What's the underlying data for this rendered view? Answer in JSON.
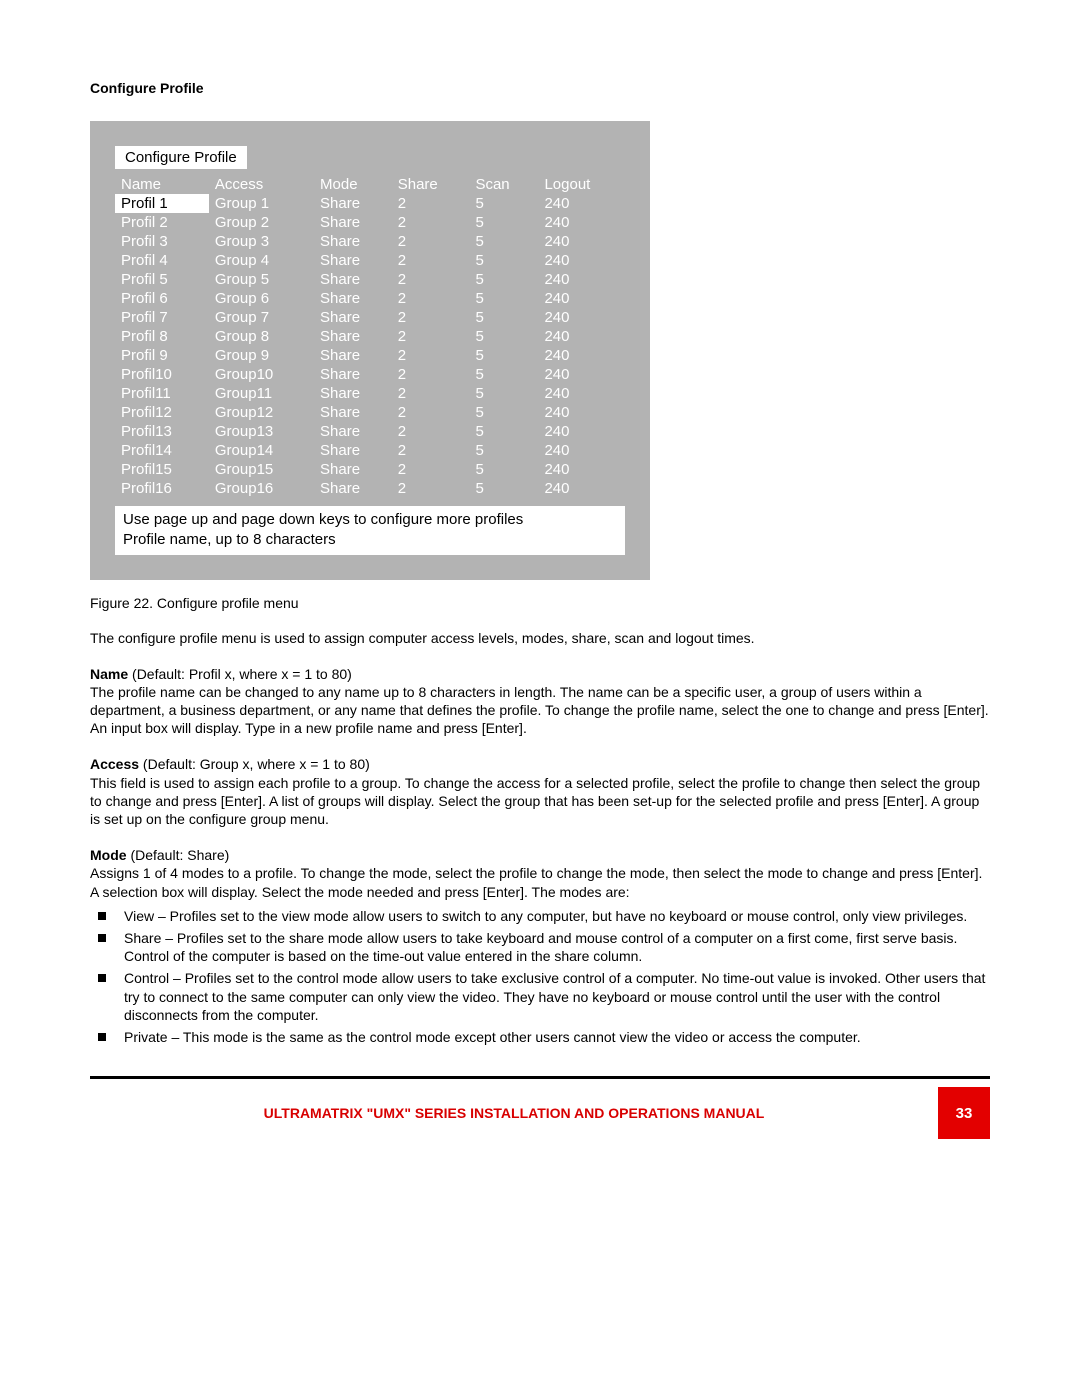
{
  "header": {
    "title": "Configure Profile"
  },
  "menu": {
    "title": "Configure Profile",
    "columns": [
      "Name",
      "Access",
      "Mode",
      "Share",
      "Scan",
      "Logout"
    ],
    "selected_row": 0,
    "rows": [
      [
        "Profil  1",
        "Group 1",
        "Share",
        "2",
        "5",
        "240"
      ],
      [
        "Profil  2",
        "Group 2",
        "Share",
        "2",
        "5",
        "240"
      ],
      [
        "Profil  3",
        "Group 3",
        "Share",
        "2",
        "5",
        "240"
      ],
      [
        "Profil  4",
        "Group 4",
        "Share",
        "2",
        "5",
        "240"
      ],
      [
        "Profil  5",
        "Group 5",
        "Share",
        "2",
        "5",
        "240"
      ],
      [
        "Profil  6",
        "Group 6",
        "Share",
        "2",
        "5",
        "240"
      ],
      [
        "Profil  7",
        "Group 7",
        "Share",
        "2",
        "5",
        "240"
      ],
      [
        "Profil  8",
        "Group 8",
        "Share",
        "2",
        "5",
        "240"
      ],
      [
        "Profil  9",
        "Group 9",
        "Share",
        "2",
        "5",
        "240"
      ],
      [
        "Profil10",
        "Group10",
        "Share",
        "2",
        "5",
        "240"
      ],
      [
        "Profil11",
        "Group11",
        "Share",
        "2",
        "5",
        "240"
      ],
      [
        "Profil12",
        "Group12",
        "Share",
        "2",
        "5",
        "240"
      ],
      [
        "Profil13",
        "Group13",
        "Share",
        "2",
        "5",
        "240"
      ],
      [
        "Profil14",
        "Group14",
        "Share",
        "2",
        "5",
        "240"
      ],
      [
        "Profil15",
        "Group15",
        "Share",
        "2",
        "5",
        "240"
      ],
      [
        "Profil16",
        "Group16",
        "Share",
        "2",
        "5",
        "240"
      ]
    ],
    "hint_line1": "Use page up and page down keys to configure more profiles",
    "hint_line2": "Profile name, up to 8 characters",
    "background_color": "#b3b3b3",
    "text_color": "#ffffff",
    "highlight_bg": "#ffffff",
    "highlight_fg": "#000000",
    "fontsize": 15
  },
  "caption": "Figure 22. Configure profile menu",
  "intro": "The configure profile menu is used to assign computer access levels, modes, share, scan and logout times.",
  "fields": {
    "name": {
      "label": "Name",
      "default": " (Default: Profil x, where x = 1 to 80)",
      "text": "The profile name can be changed to any name up to 8 characters in length. The name can be a specific user, a group of users within a department, a business department, or any name that defines the profile.  To change the profile name, select the one to change and press [Enter].  An input box will display. Type in a new profile name and press [Enter]."
    },
    "access": {
      "label": "Access",
      "default": " (Default: Group x, where x = 1 to 80)",
      "text": "This field is used to assign each profile to a group. To change the access for a selected profile, select the profile to change then select the group to change and press [Enter].  A list of groups will display.  Select the group that has been set-up for the selected profile and press [Enter].  A group is set up on the configure group menu."
    },
    "mode": {
      "label": "Mode",
      "default": " (Default: Share)",
      "text": "Assigns 1 of 4 modes to a profile. To change the mode, select the profile to change the mode, then select the mode to change and press [Enter].  A selection box will display.  Select the mode needed and press [Enter].  The modes are:"
    }
  },
  "modes_list": [
    "View – Profiles set to the view mode allow users to switch to any computer, but have no keyboard or mouse control, only view privileges.",
    "Share – Profiles set to the share mode allow users to take keyboard and mouse control of a computer on a first come, first serve basis. Control of the computer is based on the time-out value entered in the share column.",
    "Control – Profiles set to the control mode allow users to take exclusive control of a computer. No time-out value is invoked.  Other users that try to connect to the same computer can only view the video.  They have no keyboard or mouse control until the user with the control disconnects from the computer.",
    "Private – This mode is the same as the control mode except other users cannot view the video or access the computer."
  ],
  "footer": {
    "title": "ULTRAMATRIX \"UMX\" SERIES INSTALLATION AND OPERATIONS MANUAL",
    "page": "33",
    "rule_color": "#000000",
    "title_color": "#d80000",
    "badge_bg": "#e30000",
    "badge_fg": "#ffffff"
  }
}
